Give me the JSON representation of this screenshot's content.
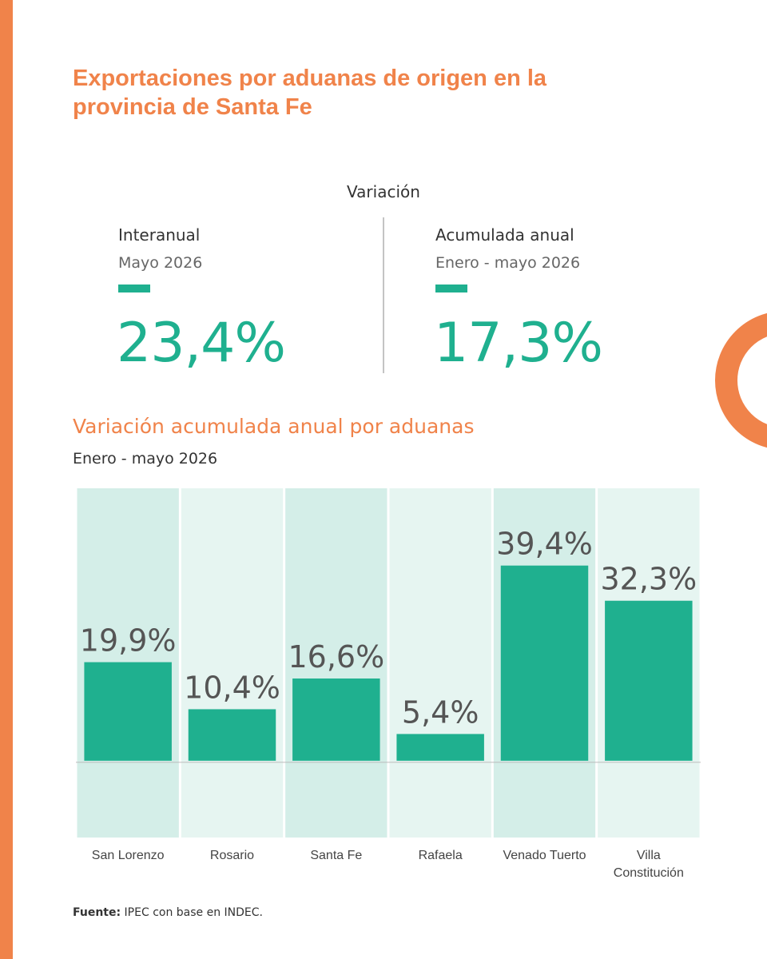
{
  "title": "Exportaciones por aduanas de origen en la provincia de Santa Fe",
  "kpi_header": "Variación",
  "kpis": [
    {
      "label": "Interanual",
      "period": "Mayo 2026",
      "value": "23,4%"
    },
    {
      "label": "Acumulada anual",
      "period": "Enero - mayo 2026",
      "value": "17,3%"
    }
  ],
  "chart_data": {
    "type": "bar",
    "title": "Variación acumulada anual por aduanas",
    "subtitle": "Enero - mayo 2026",
    "categories": [
      "San Lorenzo",
      "Rosario",
      "Santa Fe",
      "Rafaela",
      "Venado Tuerto",
      "Villa Constitución"
    ],
    "values": [
      19.9,
      10.4,
      16.6,
      5.4,
      39.4,
      32.3
    ],
    "value_labels": [
      "19,9%",
      "10,4%",
      "16,6%",
      "5,4%",
      "39,4%",
      "32,3%"
    ],
    "color": "#1fb08f",
    "ylim": [
      -15.5,
      55
    ]
  },
  "source": {
    "label": "Fuente:",
    "text": "IPEC con base en INDEC."
  }
}
